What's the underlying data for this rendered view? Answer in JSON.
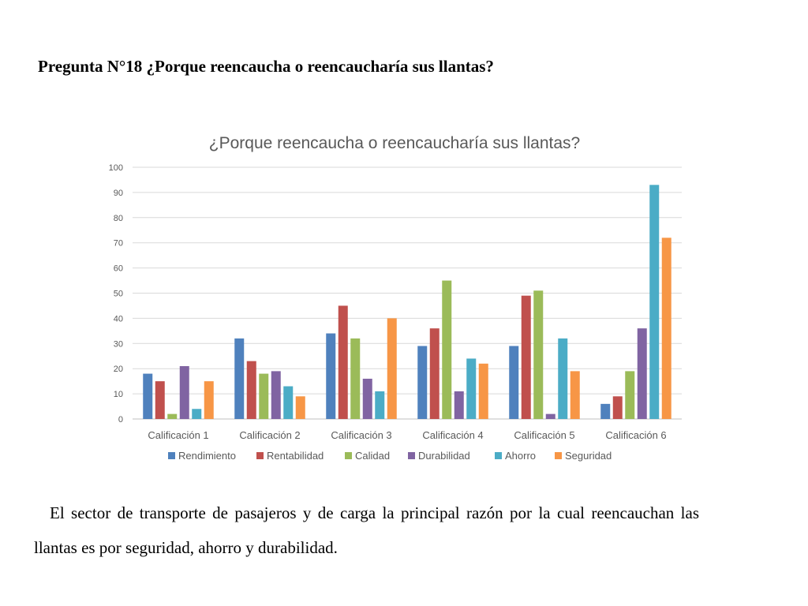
{
  "heading": "Pregunta N°18 ¿Porque reencaucha o reencaucharía sus llantas?",
  "paragraph": "El sector de transporte de pasajeros y de carga la principal razón por la cual reencauchan las llantas es por seguridad, ahorro y durabilidad.",
  "chart_data": {
    "type": "bar",
    "title": "¿Porque reencaucha o reencaucharía sus llantas?",
    "xlabel": "",
    "ylabel": "",
    "ylim": [
      0,
      100
    ],
    "yticks": [
      0,
      10,
      20,
      30,
      40,
      50,
      60,
      70,
      80,
      90,
      100
    ],
    "grid": true,
    "legend": "bottom",
    "categories": [
      "Calificación 1",
      "Calificación 2",
      "Calificación 3",
      "Calificación 4",
      "Calificación 5",
      "Calificación 6"
    ],
    "series": [
      {
        "name": "Rendimiento",
        "color": "#4f81bd",
        "values": [
          18,
          32,
          34,
          29,
          29,
          6
        ]
      },
      {
        "name": "Rentabilidad",
        "color": "#c0504d",
        "values": [
          15,
          23,
          45,
          36,
          49,
          9
        ]
      },
      {
        "name": "Calidad",
        "color": "#9bbb59",
        "values": [
          2,
          18,
          32,
          55,
          51,
          19
        ]
      },
      {
        "name": "Durabilidad",
        "color": "#8064a2",
        "values": [
          21,
          19,
          16,
          11,
          2,
          36
        ]
      },
      {
        "name": "Ahorro",
        "color": "#4bacc6",
        "values": [
          4,
          13,
          11,
          24,
          32,
          93
        ]
      },
      {
        "name": "Seguridad",
        "color": "#f79646",
        "values": [
          15,
          9,
          40,
          22,
          19,
          72
        ]
      }
    ]
  }
}
